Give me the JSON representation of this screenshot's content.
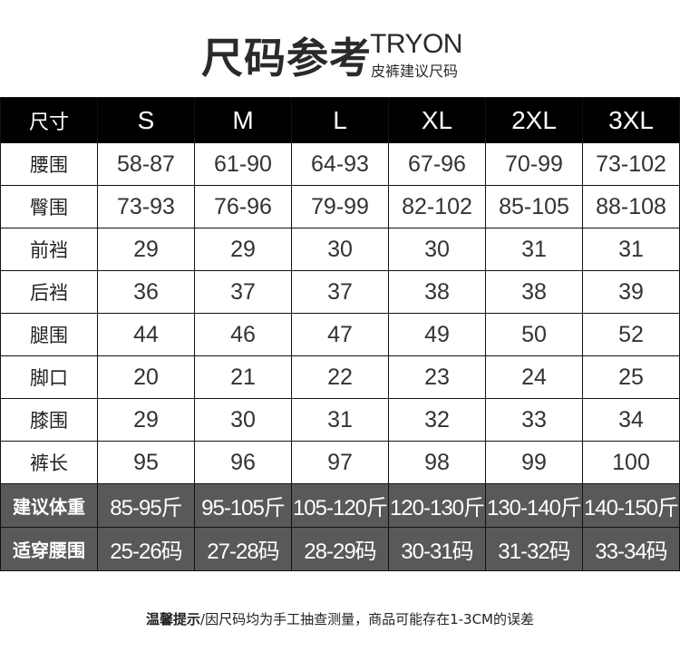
{
  "title": {
    "main": "尺码参考",
    "english": "TRYON",
    "subtitle": "皮裤建议尺码"
  },
  "table": {
    "header": [
      "尺寸",
      "S",
      "M",
      "L",
      "XL",
      "2XL",
      "3XL"
    ],
    "rows": [
      {
        "label": "腰围",
        "values": [
          "58-87",
          "61-90",
          "64-93",
          "67-96",
          "70-99",
          "73-102"
        ]
      },
      {
        "label": "臀围",
        "values": [
          "73-93",
          "76-96",
          "79-99",
          "82-102",
          "85-105",
          "88-108"
        ]
      },
      {
        "label": "前裆",
        "values": [
          "29",
          "29",
          "30",
          "30",
          "31",
          "31"
        ]
      },
      {
        "label": "后裆",
        "values": [
          "36",
          "37",
          "37",
          "38",
          "38",
          "39"
        ]
      },
      {
        "label": "腿围",
        "values": [
          "44",
          "46",
          "47",
          "49",
          "50",
          "52"
        ]
      },
      {
        "label": "脚口",
        "values": [
          "20",
          "21",
          "22",
          "23",
          "24",
          "25"
        ]
      },
      {
        "label": "膝围",
        "values": [
          "29",
          "30",
          "31",
          "32",
          "33",
          "34"
        ]
      },
      {
        "label": "裤长",
        "values": [
          "95",
          "96",
          "97",
          "98",
          "99",
          "100"
        ]
      }
    ],
    "dark_rows": [
      {
        "label": "建议体重",
        "values": [
          "85-95斤",
          "95-105斤",
          "105-120斤",
          "120-130斤",
          "130-140斤",
          "140-150斤"
        ]
      },
      {
        "label": "适穿腰围",
        "values": [
          "25-26码",
          "27-28码",
          "28-29码",
          "30-31码",
          "31-32码",
          "33-34码"
        ]
      }
    ]
  },
  "note": {
    "bold": "温馨提示",
    "text": "/因尺码均为手工抽查测量，商品可能存在1-3CM的误差"
  },
  "colors": {
    "header_bg": "#000000",
    "dark_row_bg": "#595959"
  }
}
